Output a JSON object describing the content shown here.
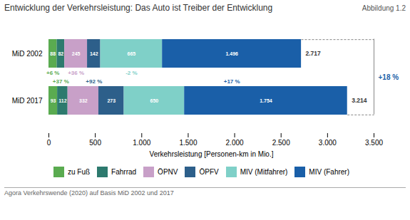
{
  "chart_data": {
    "type": "bar",
    "orientation": "horizontal",
    "stacked": true,
    "data_labels": true,
    "grid": false,
    "title": "Entwicklung der Verkehrsleistung: Das Auto ist Treiber der Entwicklung",
    "figure_label": "Abbildung 1.2",
    "xlabel": "Verkehrsleistung [Personen-km in Mio.]",
    "source": "Agora Verkehrswende (2020) auf Basis MiD 2002 und 2017",
    "categories": [
      "MiD 2002",
      "MiD 2017"
    ],
    "series": [
      {
        "name": "zu Fuß",
        "color": "#5aab50",
        "values": [
          88,
          93
        ],
        "value_labels": [
          "88",
          "93"
        ]
      },
      {
        "name": "Fahrrad",
        "color": "#2d7a6e",
        "values": [
          82,
          112
        ],
        "value_labels": [
          "82",
          "112"
        ]
      },
      {
        "name": "ÖPNV",
        "color": "#c8a0c8",
        "values": [
          245,
          332
        ],
        "value_labels": [
          "245",
          "332"
        ]
      },
      {
        "name": "ÖPFV",
        "color": "#2d5f8a",
        "values": [
          142,
          273
        ],
        "value_labels": [
          "142",
          "273"
        ]
      },
      {
        "name": "MIV (Mitfahrer)",
        "color": "#7fd0c8",
        "values": [
          665,
          650
        ],
        "value_labels": [
          "665",
          "650"
        ]
      },
      {
        "name": "MIV (Fahrer)",
        "color": "#1a5fa8",
        "values": [
          1496,
          1754
        ],
        "value_labels": [
          "1.496",
          "1.754"
        ]
      }
    ],
    "totals": {
      "values": [
        2717,
        3214
      ],
      "value_labels": [
        "2.717",
        "3.214"
      ]
    },
    "changes": [
      {
        "label": "+6 %",
        "color": "#5aab50"
      },
      {
        "label": "+37 %",
        "color": "#5aab50"
      },
      {
        "label": "+36 %",
        "color": "#c8a0c8"
      },
      {
        "label": "+92 %",
        "color": "#2d5f8a"
      },
      {
        "label": "-2 %",
        "color": "#7fd0c8"
      },
      {
        "label": "+17 %",
        "color": "#1a5fa8"
      }
    ],
    "total_change": {
      "label": "+18 %",
      "color": "#1a5fa8"
    },
    "xlim": [
      0,
      3500
    ],
    "xticks": [
      0,
      500,
      {
        "value": 1000,
        "label": "1.000"
      },
      {
        "value": 1500,
        "label": "1.500"
      },
      {
        "value": 2000,
        "label": "2.000"
      },
      {
        "value": 2500,
        "label": "2.500"
      },
      {
        "value": 3000,
        "label": "3.000"
      },
      {
        "value": 3500,
        "label": "3.500"
      }
    ]
  }
}
